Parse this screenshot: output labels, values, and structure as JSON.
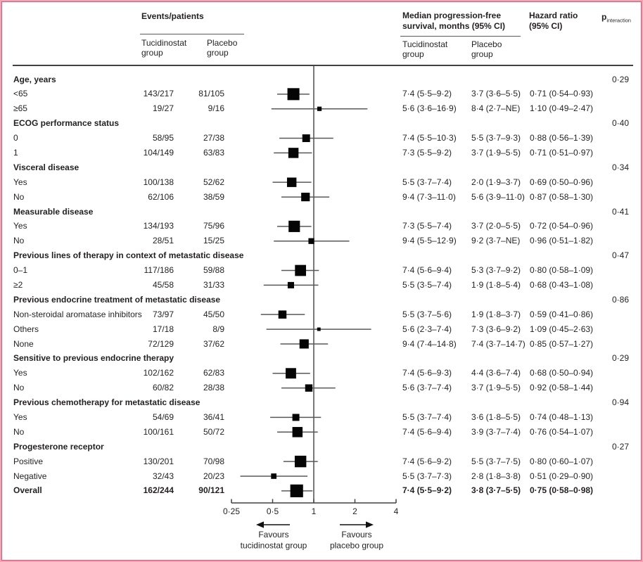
{
  "colors": {
    "border_outer": "#f2a2b5",
    "border_inner": "#d4566f",
    "text": "#231f20",
    "marker": "#050505",
    "ci_line": "#58595b",
    "axis_line": "#414042"
  },
  "chart_data": {
    "type": "forest",
    "x_scale": "log2",
    "x_ticks": [
      0.25,
      0.5,
      1,
      2,
      4
    ],
    "x_tick_labels": [
      "0·25",
      "0·5",
      "1",
      "2",
      "4"
    ],
    "x_range": [
      0.25,
      4
    ],
    "reference_line": 1,
    "legend_position": "none",
    "favours_left": [
      "Favours",
      "tucidinostat group"
    ],
    "favours_right": [
      "Favours",
      "placebo group"
    ],
    "columns": {
      "events_title": "Events/patients",
      "events_tucidinostat": "Tucidinostat group",
      "events_placebo": "Placebo group",
      "pfs_title": "Median progression-free survival, months (95% CI)",
      "pfs_tucidinostat": "Tucidinostat group",
      "pfs_placebo": "Placebo group",
      "hr_title": "Hazard ratio (95% CI)",
      "p_title": "p",
      "p_subscript": "interaction"
    },
    "rows": [
      {
        "type": "group",
        "label": "Age, years",
        "p": "0·29"
      },
      {
        "type": "item",
        "label": "<65",
        "events_tucidinostat": "143/217",
        "events_placebo": "81/105",
        "pfs_tucidinostat": "7·4 (5·5–9·2)",
        "pfs_placebo": "3·7 (3·6–5·5)",
        "hr_text": "0·71 (0·54–0·93)",
        "hr": 0.71,
        "ci_low": 0.54,
        "ci_high": 0.93
      },
      {
        "type": "item",
        "label": "≥65",
        "events_tucidinostat": "19/27",
        "events_placebo": "9/16",
        "pfs_tucidinostat": "5·6 (3·6–16·9)",
        "pfs_placebo": "8·4 (2·7–NE)",
        "hr_text": "1·10 (0·49–2·47)",
        "hr": 1.1,
        "ci_low": 0.49,
        "ci_high": 2.47
      },
      {
        "type": "group",
        "label": "ECOG performance status",
        "p": "0·40"
      },
      {
        "type": "item",
        "label": "0",
        "events_tucidinostat": "58/95",
        "events_placebo": "27/38",
        "pfs_tucidinostat": "7·4 (5·5–10·3)",
        "pfs_placebo": "5·5 (3·7–9·3)",
        "hr_text": "0·88 (0·56–1·39)",
        "hr": 0.88,
        "ci_low": 0.56,
        "ci_high": 1.39
      },
      {
        "type": "item",
        "label": "1",
        "events_tucidinostat": "104/149",
        "events_placebo": "63/83",
        "pfs_tucidinostat": "7·3 (5·5–9·2)",
        "pfs_placebo": "3·7 (1·9–5·5)",
        "hr_text": "0·71 (0·51–0·97)",
        "hr": 0.71,
        "ci_low": 0.51,
        "ci_high": 0.97
      },
      {
        "type": "group",
        "label": "Visceral disease",
        "p": "0·34"
      },
      {
        "type": "item",
        "label": "Yes",
        "events_tucidinostat": "100/138",
        "events_placebo": "52/62",
        "pfs_tucidinostat": "5·5 (3·7–7·4)",
        "pfs_placebo": "2·0 (1·9–3·7)",
        "hr_text": "0·69 (0·50–0·96)",
        "hr": 0.69,
        "ci_low": 0.5,
        "ci_high": 0.96
      },
      {
        "type": "item",
        "label": "No",
        "events_tucidinostat": "62/106",
        "events_placebo": "38/59",
        "pfs_tucidinostat": "9·4 (7·3–11·0)",
        "pfs_placebo": "5·6 (3·9–11·0)",
        "hr_text": "0·87 (0·58–1·30)",
        "hr": 0.87,
        "ci_low": 0.58,
        "ci_high": 1.3
      },
      {
        "type": "group",
        "label": "Measurable disease",
        "p": "0·41"
      },
      {
        "type": "item",
        "label": "Yes",
        "events_tucidinostat": "134/193",
        "events_placebo": "75/96",
        "pfs_tucidinostat": "7·3 (5·5–7·4)",
        "pfs_placebo": "3·7 (2·0–5·5)",
        "hr_text": "0·72 (0·54–0·96)",
        "hr": 0.72,
        "ci_low": 0.54,
        "ci_high": 0.96
      },
      {
        "type": "item",
        "label": "No",
        "events_tucidinostat": "28/51",
        "events_placebo": "15/25",
        "pfs_tucidinostat": "9·4 (5·5–12·9)",
        "pfs_placebo": "9·2 (3·7–NE)",
        "hr_text": "0·96 (0·51–1·82)",
        "hr": 0.96,
        "ci_low": 0.51,
        "ci_high": 1.82
      },
      {
        "type": "group",
        "label": "Previous lines of therapy in context of metastatic disease",
        "p": "0·47"
      },
      {
        "type": "item",
        "label": "0–1",
        "events_tucidinostat": "117/186",
        "events_placebo": "59/88",
        "pfs_tucidinostat": "7·4 (5·6–9·4)",
        "pfs_placebo": "5·3 (3·7–9·2)",
        "hr_text": "0·80 (0·58–1·09)",
        "hr": 0.8,
        "ci_low": 0.58,
        "ci_high": 1.09
      },
      {
        "type": "item",
        "label": "≥2",
        "events_tucidinostat": "45/58",
        "events_placebo": "31/33",
        "pfs_tucidinostat": "5·5 (3·5–7·4)",
        "pfs_placebo": "1·9 (1·8–5·4)",
        "hr_text": "0·68 (0·43–1·08)",
        "hr": 0.68,
        "ci_low": 0.43,
        "ci_high": 1.08
      },
      {
        "type": "group",
        "label": "Previous endocrine treatment of metastatic disease",
        "p": "0·86"
      },
      {
        "type": "item",
        "label": "Non-steroidal aromatase inhibitors",
        "events_tucidinostat": "73/97",
        "events_placebo": "45/50",
        "pfs_tucidinostat": "5·5 (3·7–5·6)",
        "pfs_placebo": "1·9 (1·8–3·7)",
        "hr_text": "0·59 (0·41–0·86)",
        "hr": 0.59,
        "ci_low": 0.41,
        "ci_high": 0.86
      },
      {
        "type": "item",
        "label": "Others",
        "events_tucidinostat": "17/18",
        "events_placebo": "8/9",
        "pfs_tucidinostat": "5·6 (2·3–7·4)",
        "pfs_placebo": "7·3 (3·6–9·2)",
        "hr_text": "1·09 (0·45–2·63)",
        "hr": 1.09,
        "ci_low": 0.45,
        "ci_high": 2.63
      },
      {
        "type": "item",
        "label": "None",
        "events_tucidinostat": "72/129",
        "events_placebo": "37/62",
        "pfs_tucidinostat": "9·4 (7·4–14·8)",
        "pfs_placebo": "7·4 (3·7–14·7)",
        "hr_text": "0·85 (0·57–1·27)",
        "hr": 0.85,
        "ci_low": 0.57,
        "ci_high": 1.27
      },
      {
        "type": "group",
        "label": "Sensitive to previous endocrine therapy",
        "p": "0·29"
      },
      {
        "type": "item",
        "label": "Yes",
        "events_tucidinostat": "102/162",
        "events_placebo": "62/83",
        "pfs_tucidinostat": "7·4 (5·6–9·3)",
        "pfs_placebo": "4·4 (3·6–7·4)",
        "hr_text": "0·68 (0·50–0·94)",
        "hr": 0.68,
        "ci_low": 0.5,
        "ci_high": 0.94
      },
      {
        "type": "item",
        "label": "No",
        "events_tucidinostat": "60/82",
        "events_placebo": "28/38",
        "pfs_tucidinostat": "5·6 (3·7–7·4)",
        "pfs_placebo": "3·7 (1·9–5·5)",
        "hr_text": "0·92 (0·58–1·44)",
        "hr": 0.92,
        "ci_low": 0.58,
        "ci_high": 1.44
      },
      {
        "type": "group",
        "label": "Previous chemotherapy for metastatic disease",
        "p": "0·94"
      },
      {
        "type": "item",
        "label": "Yes",
        "events_tucidinostat": "54/69",
        "events_placebo": "36/41",
        "pfs_tucidinostat": "5·5 (3·7–7·4)",
        "pfs_placebo": "3·6 (1·8–5·5)",
        "hr_text": "0·74 (0·48–1·13)",
        "hr": 0.74,
        "ci_low": 0.48,
        "ci_high": 1.13
      },
      {
        "type": "item",
        "label": "No",
        "events_tucidinostat": "100/161",
        "events_placebo": "50/72",
        "pfs_tucidinostat": "7·4 (5·6–9·4)",
        "pfs_placebo": "3·9 (3·7–7·4)",
        "hr_text": "0·76 (0·54–1·07)",
        "hr": 0.76,
        "ci_low": 0.54,
        "ci_high": 1.07
      },
      {
        "type": "group",
        "label": "Progesterone receptor",
        "p": "0·27"
      },
      {
        "type": "item",
        "label": "Positive",
        "events_tucidinostat": "130/201",
        "events_placebo": "70/98",
        "pfs_tucidinostat": "7·4 (5·6–9·2)",
        "pfs_placebo": "5·5 (3·7–7·5)",
        "hr_text": "0·80 (0·60–1·07)",
        "hr": 0.8,
        "ci_low": 0.6,
        "ci_high": 1.07
      },
      {
        "type": "item",
        "label": "Negative",
        "events_tucidinostat": "32/43",
        "events_placebo": "20/23",
        "pfs_tucidinostat": "5·5 (3·7–7·3)",
        "pfs_placebo": "2·8 (1·8–3·8)",
        "hr_text": "0·51 (0·29–0·90)",
        "hr": 0.51,
        "ci_low": 0.29,
        "ci_high": 0.9
      },
      {
        "type": "item",
        "label": "Overall",
        "bold": true,
        "events_tucidinostat": "162/244",
        "events_placebo": "90/121",
        "pfs_tucidinostat": "7·4 (5·5–9·2)",
        "pfs_placebo": "3·8 (3·7–5·5)",
        "hr_text": "0·75 (0·58–0·98)",
        "hr": 0.75,
        "ci_low": 0.58,
        "ci_high": 0.98
      }
    ]
  }
}
